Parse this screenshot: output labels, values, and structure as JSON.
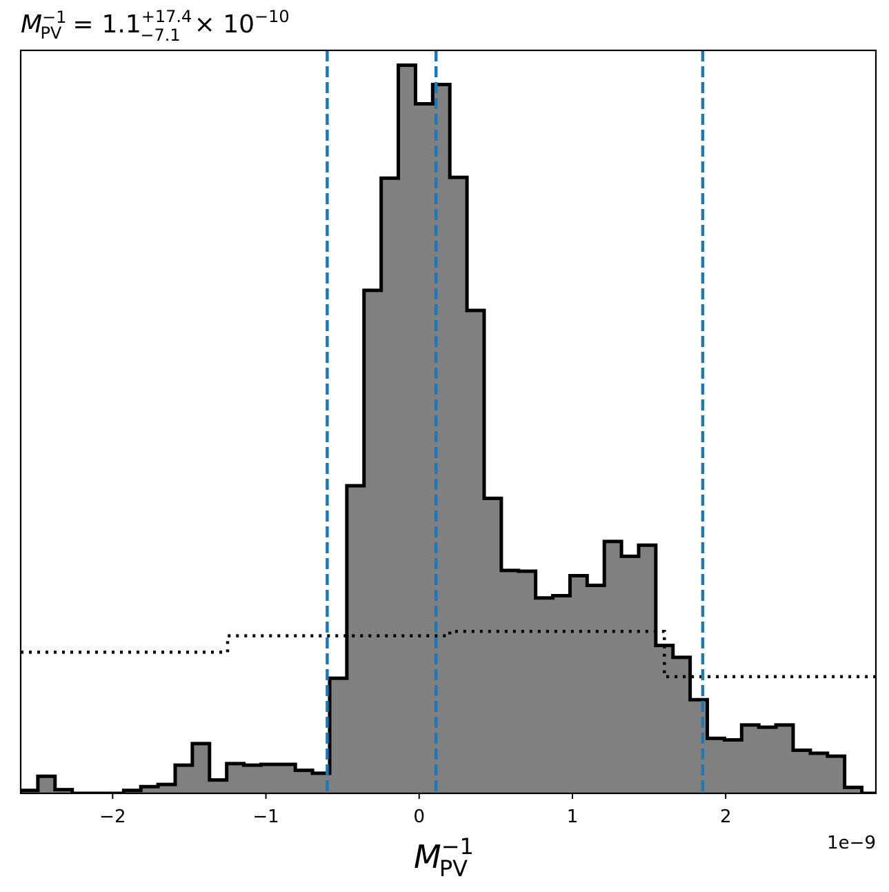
{
  "chart_data": {
    "type": "histogram",
    "title": {
      "symbol": "M",
      "symbol_sub": "PV",
      "symbol_sup": "−1",
      "equals": "=",
      "value": "1.1",
      "upper_err": "+17.4",
      "lower_err": "−7.1",
      "times_exponent": "× 10",
      "exponent": "−10"
    },
    "xlabel": {
      "symbol": "M",
      "symbol_sub": "PV",
      "symbol_sup": "−1"
    },
    "offset_text": "1e−9",
    "x_scale": 1e-09,
    "xlim": [
      -2.6,
      2.98
    ],
    "ylim": [
      0,
      1.0
    ],
    "y_ticks_shown": false,
    "xticks": [
      {
        "value": -2,
        "label": "−2"
      },
      {
        "value": -1,
        "label": "−1"
      },
      {
        "value": 0,
        "label": "0"
      },
      {
        "value": 1,
        "label": "1"
      },
      {
        "value": 2,
        "label": "2"
      }
    ],
    "histogram": {
      "fill_color": "#808080",
      "edge_color": "#000000",
      "bin_start": -2.6,
      "bin_width": 0.112,
      "values": [
        0.004,
        0.023,
        0.005,
        0.0,
        0.0,
        0.0,
        0.004,
        0.009,
        0.012,
        0.038,
        0.067,
        0.018,
        0.04,
        0.038,
        0.039,
        0.039,
        0.031,
        0.027,
        0.155,
        0.414,
        0.677,
        0.828,
        0.98,
        0.928,
        0.954,
        0.829,
        0.65,
        0.397,
        0.3,
        0.299,
        0.263,
        0.266,
        0.293,
        0.28,
        0.339,
        0.319,
        0.334,
        0.199,
        0.183,
        0.126,
        0.074,
        0.072,
        0.092,
        0.089,
        0.092,
        0.058,
        0.054,
        0.05,
        0.008,
        0.0
      ]
    },
    "prior_step": {
      "color": "#000000",
      "style": "dotted",
      "x": [
        -2.6,
        -1.25,
        -1.25,
        0.2,
        0.2,
        1.6,
        1.6,
        2.98
      ],
      "y": [
        0.19,
        0.19,
        0.212,
        0.212,
        0.218,
        0.218,
        0.157,
        0.157
      ]
    },
    "quantile_lines": {
      "color": "#1f77b4",
      "style": "dashed",
      "x": [
        -0.6,
        0.11,
        1.85
      ]
    }
  }
}
